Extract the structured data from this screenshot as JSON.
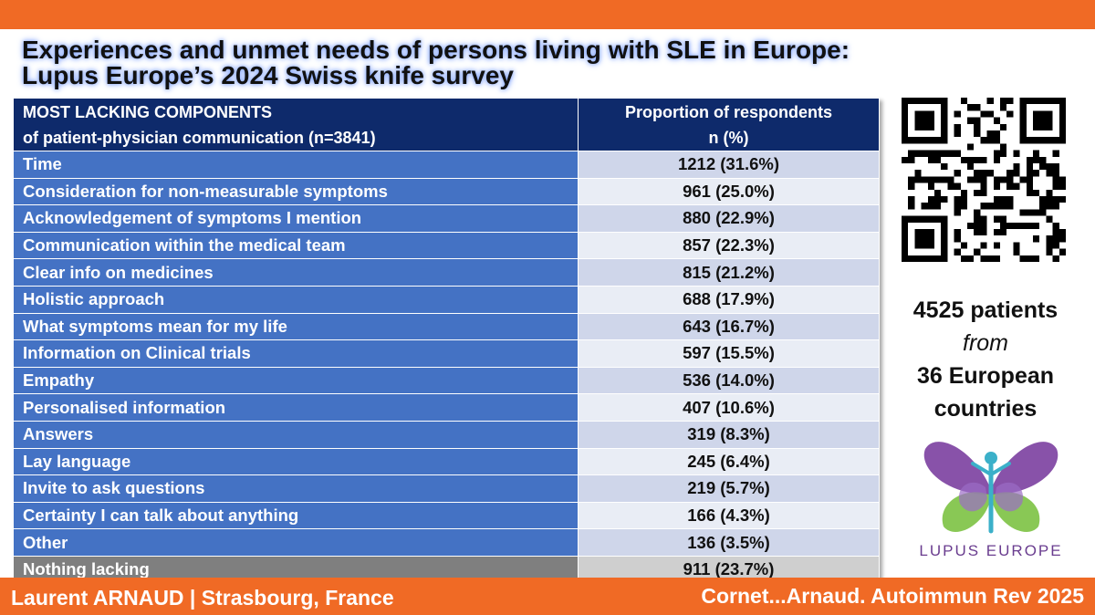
{
  "title": {
    "line1": "Experiences and unmet needs of persons living with SLE in Europe:",
    "line2": "Lupus Europe’s 2024 Swiss knife survey"
  },
  "table": {
    "header": {
      "col1_line1": "MOST LACKING COMPONENTS",
      "col1_line2": "of patient-physician communication (n=3841)",
      "col2_line1": "Proportion of respondents",
      "col2_line2": "n (%)"
    },
    "rows": [
      {
        "label": "Time",
        "value": "1212 (31.6%)"
      },
      {
        "label": "Consideration for non-measurable symptoms",
        "value": "961 (25.0%)"
      },
      {
        "label": "Acknowledgement of symptoms I mention",
        "value": "880 (22.9%)"
      },
      {
        "label": "Communication within the medical team",
        "value": "857 (22.3%)"
      },
      {
        "label": "Clear info on medicines",
        "value": "815 (21.2%)"
      },
      {
        "label": "Holistic approach",
        "value": "688 (17.9%)"
      },
      {
        "label": "What symptoms mean for my life",
        "value": "643 (16.7%)"
      },
      {
        "label": "Information on Clinical trials",
        "value": "597 (15.5%)"
      },
      {
        "label": "Empathy",
        "value": "536 (14.0%)"
      },
      {
        "label": "Personalised information",
        "value": "407 (10.6%)"
      },
      {
        "label": "Answers",
        "value": "319 (8.3%)"
      },
      {
        "label": "Lay language",
        "value": "245 (6.4%)"
      },
      {
        "label": "Invite to ask questions",
        "value": "219 (5.7%)"
      },
      {
        "label": "Certainty I can talk about anything",
        "value": "166 (4.3%)"
      },
      {
        "label": "Other",
        "value": "136 (3.5%)"
      },
      {
        "label": "Nothing lacking",
        "value": "911 (23.7%)"
      }
    ]
  },
  "stats": {
    "line1": "4525 patients",
    "line2": "from",
    "line3": "36 European",
    "line4": "countries"
  },
  "logo_text": "LUPUS EUROPE",
  "footer": {
    "left": "Laurent ARNAUD | Strasbourg, France",
    "right": "Cornet...Arnaud. Autoimmun Rev 2025"
  },
  "colors": {
    "accent_orange": "#f06a25",
    "header_navy": "#0e2a6b",
    "row_blue": "#4472c4",
    "logo_purple": "#6a3d8f"
  }
}
